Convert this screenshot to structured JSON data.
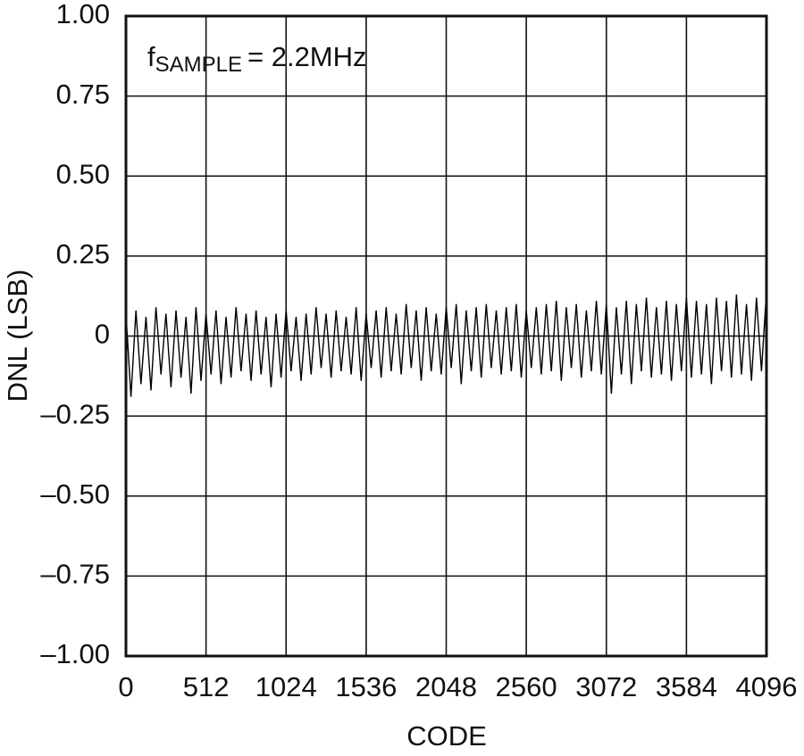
{
  "chart_data": {
    "type": "line",
    "annotation": {
      "base": "f",
      "subscript": "SAMPLE",
      "text": "= 2.2MHz"
    },
    "x_label": "CODE",
    "y_label": "DNL (LSB)",
    "xlim": [
      0,
      4096
    ],
    "ylim": [
      -1,
      1
    ],
    "xticks": [
      0,
      512,
      1024,
      1536,
      2048,
      2560,
      3072,
      3584,
      4096
    ],
    "yticks": [
      {
        "value": 1,
        "label": "1.00"
      },
      {
        "value": 0.75,
        "label": "0.75"
      },
      {
        "value": 0.5,
        "label": "0.50"
      },
      {
        "value": 0.25,
        "label": "0.25"
      },
      0,
      {
        "value": -0.25,
        "label": "–0.25"
      },
      {
        "value": -0.5,
        "label": "–0.50"
      },
      {
        "value": -0.75,
        "label": "–0.75"
      },
      {
        "value": -1,
        "label": "–1.00"
      }
    ],
    "grid": true,
    "color": "#000000",
    "x": [
      0,
      32,
      64,
      96,
      128,
      160,
      192,
      224,
      256,
      288,
      320,
      352,
      384,
      416,
      448,
      480,
      512,
      544,
      576,
      608,
      640,
      672,
      704,
      736,
      768,
      800,
      832,
      864,
      896,
      928,
      960,
      992,
      1024,
      1056,
      1088,
      1120,
      1152,
      1184,
      1216,
      1248,
      1280,
      1312,
      1344,
      1376,
      1408,
      1440,
      1472,
      1504,
      1536,
      1568,
      1600,
      1632,
      1664,
      1696,
      1728,
      1760,
      1792,
      1824,
      1856,
      1888,
      1920,
      1952,
      1984,
      2016,
      2048,
      2080,
      2112,
      2144,
      2176,
      2208,
      2240,
      2272,
      2304,
      2336,
      2368,
      2400,
      2432,
      2464,
      2496,
      2528,
      2560,
      2592,
      2624,
      2656,
      2688,
      2720,
      2752,
      2784,
      2816,
      2848,
      2880,
      2912,
      2944,
      2976,
      3008,
      3040,
      3072,
      3104,
      3136,
      3168,
      3200,
      3232,
      3264,
      3296,
      3328,
      3360,
      3392,
      3424,
      3456,
      3488,
      3520,
      3552,
      3584,
      3616,
      3648,
      3680,
      3712,
      3744,
      3776,
      3808,
      3840,
      3872,
      3904,
      3936,
      3968,
      4000,
      4032,
      4064,
      4096
    ],
    "values": [
      0.07,
      -0.19,
      0.08,
      -0.15,
      0.06,
      -0.17,
      0.09,
      -0.12,
      0.07,
      -0.16,
      0.08,
      -0.13,
      0.06,
      -0.18,
      0.09,
      -0.14,
      0.07,
      -0.12,
      0.08,
      -0.15,
      0.06,
      -0.13,
      0.09,
      -0.11,
      0.07,
      -0.14,
      0.08,
      -0.12,
      0.06,
      -0.16,
      0.07,
      -0.13,
      0.08,
      -0.11,
      0.06,
      -0.14,
      0.07,
      -0.12,
      0.09,
      -0.1,
      0.07,
      -0.13,
      0.08,
      -0.11,
      0.06,
      -0.12,
      0.09,
      -0.14,
      0.07,
      -0.1,
      0.08,
      -0.13,
      0.09,
      -0.11,
      0.07,
      -0.12,
      0.1,
      -0.1,
      0.08,
      -0.14,
      0.09,
      -0.11,
      0.07,
      -0.12,
      0.09,
      -0.1,
      0.1,
      -0.15,
      0.08,
      -0.11,
      0.09,
      -0.13,
      0.1,
      -0.1,
      0.08,
      -0.12,
      0.09,
      -0.11,
      0.1,
      -0.13,
      0.08,
      -0.1,
      0.09,
      -0.12,
      0.1,
      -0.11,
      0.11,
      -0.14,
      0.09,
      -0.1,
      0.1,
      -0.13,
      0.08,
      -0.11,
      0.11,
      -0.12,
      0.1,
      -0.18,
      0.09,
      -0.12,
      0.11,
      -0.15,
      0.1,
      -0.11,
      0.12,
      -0.13,
      0.09,
      -0.12,
      0.11,
      -0.14,
      0.1,
      -0.11,
      0.12,
      -0.13,
      0.11,
      -0.12,
      0.1,
      -0.15,
      0.12,
      -0.11,
      0.11,
      -0.13,
      0.13,
      -0.12,
      0.1,
      -0.14,
      0.12,
      -0.11,
      0.14
    ]
  }
}
